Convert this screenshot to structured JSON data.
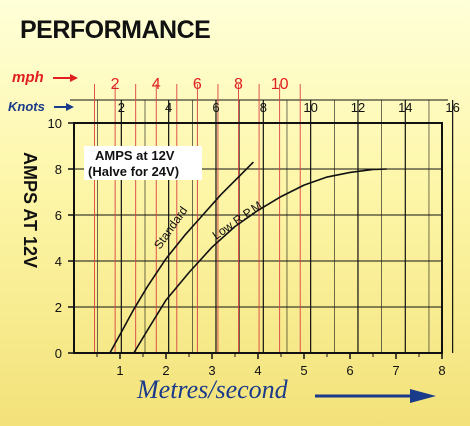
{
  "chart_data": {
    "type": "line",
    "title": "PERFORMANCE",
    "xlabel": "Metres/second",
    "ylabel": "AMPS AT 12V",
    "xlim": [
      0,
      8
    ],
    "ylim": [
      0,
      10
    ],
    "x_ticks": [
      "1",
      "2",
      "3",
      "4",
      "5",
      "6",
      "7",
      "8"
    ],
    "y_ticks": [
      "0",
      "2",
      "4",
      "6",
      "8",
      "10"
    ],
    "grid": true,
    "annotation": [
      "AMPS at 12V",
      "(Halve for 24V)"
    ],
    "mph_axis": {
      "label": "mph",
      "ticks": [
        {
          "value": 2,
          "label": "2"
        },
        {
          "value": 4,
          "label": "4"
        },
        {
          "value": 6,
          "label": "6"
        },
        {
          "value": 8,
          "label": "8"
        },
        {
          "value": 10,
          "label": "10"
        }
      ]
    },
    "knots_axis": {
      "label": "Knots",
      "ticks": [
        {
          "value": 2,
          "label": "2"
        },
        {
          "value": 4,
          "label": "4"
        },
        {
          "value": 6,
          "label": "6"
        },
        {
          "value": 8,
          "label": "8"
        },
        {
          "value": 10,
          "label": "10"
        },
        {
          "value": 12,
          "label": "12"
        },
        {
          "value": 14,
          "label": "14"
        },
        {
          "value": 16,
          "label": "16"
        }
      ]
    },
    "series": [
      {
        "name": "Standard",
        "x": [
          0.78,
          1.0,
          1.3,
          1.6,
          2.0,
          2.4,
          2.8,
          3.2,
          3.6,
          3.9
        ],
        "y": [
          0,
          0.8,
          1.9,
          2.9,
          4.1,
          5.1,
          6.0,
          6.9,
          7.7,
          8.3
        ]
      },
      {
        "name": "Low R.P.M.",
        "x": [
          1.3,
          1.6,
          2.0,
          2.5,
          3.0,
          3.5,
          4.0,
          4.5,
          5.0,
          5.5,
          6.0,
          6.5,
          6.8
        ],
        "y": [
          0,
          1.0,
          2.3,
          3.5,
          4.6,
          5.5,
          6.2,
          6.8,
          7.3,
          7.65,
          7.85,
          7.98,
          8.0
        ]
      }
    ],
    "colors": {
      "axis_arrow": "#1a3a8a",
      "mph": "#e02020",
      "gridline_red": "#d94040",
      "gridline_black": "#111111"
    }
  }
}
